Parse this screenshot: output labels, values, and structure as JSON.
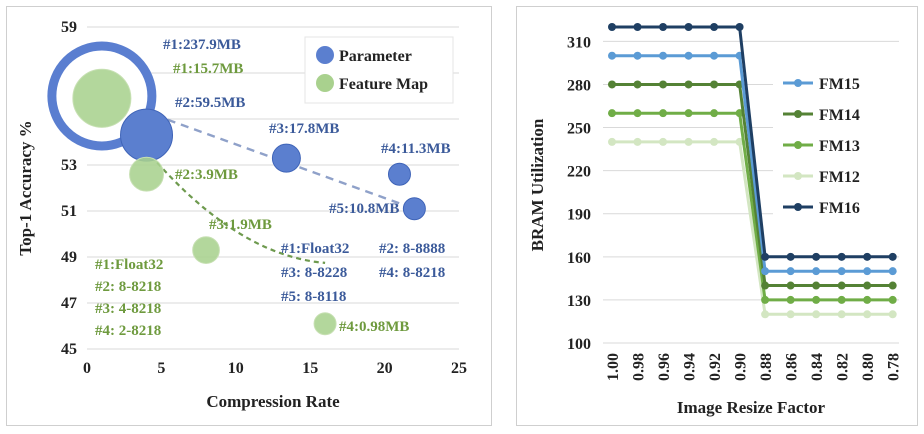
{
  "chart_data": [
    {
      "type": "scatter",
      "title": "",
      "xlabel": "Compression Rate",
      "ylabel": "Top-1 Accuracy %",
      "xlim": [
        0,
        25
      ],
      "ylim": [
        45,
        59
      ],
      "xticks": [
        "0",
        "5",
        "10",
        "15",
        "20",
        "25"
      ],
      "yticks": [
        "45",
        "47",
        "49",
        "51",
        "53",
        "55",
        "57",
        "59"
      ],
      "grid": "horizontal",
      "legend": [
        "Parameter",
        "Feature Map"
      ],
      "legend_position": "top-right",
      "series": [
        {
          "name": "Parameter",
          "color": "#4a6bbf",
          "trendline": "linear-dashed",
          "points": [
            {
              "x": 1,
              "y": 56.0,
              "label": "#1:237.9MB",
              "size_mb": 237.9
            },
            {
              "x": 4,
              "y": 54.3,
              "label": "#2:59.5MB",
              "size_mb": 59.5
            },
            {
              "x": 13.4,
              "y": 53.3,
              "label": "#3:17.8MB",
              "size_mb": 17.8
            },
            {
              "x": 21,
              "y": 52.6,
              "label": "#4:11.3MB",
              "size_mb": 11.3
            },
            {
              "x": 22,
              "y": 51.1,
              "label": "#5:10.8MB",
              "size_mb": 10.8
            }
          ]
        },
        {
          "name": "Feature Map",
          "color": "#9fcf7f",
          "trendline": "curve-dashed",
          "points": [
            {
              "x": 1,
              "y": 55.9,
              "label": "#1:15.7MB",
              "size_mb": 15.7
            },
            {
              "x": 4,
              "y": 52.6,
              "label": "#2:3.9MB",
              "size_mb": 3.9
            },
            {
              "x": 8,
              "y": 49.3,
              "label": "#3:1.9MB",
              "size_mb": 1.9
            },
            {
              "x": 16,
              "y": 46.1,
              "label": "#4:0.98MB",
              "size_mb": 0.98
            }
          ]
        }
      ],
      "annotations": {
        "parameter_key": [
          "#1:Float32",
          "#2: 8-8888",
          "#3: 8-8228",
          "#4: 8-8218",
          "#5: 8-8118"
        ],
        "feature_map_key": [
          "#1:Float32",
          "#2: 8-8218",
          "#3: 4-8218",
          "#4: 2-8218"
        ]
      }
    },
    {
      "type": "line",
      "title": "",
      "xlabel": "Image Resize Factor",
      "ylabel": "BRAM Utilization",
      "categories": [
        "1.00",
        "0.98",
        "0.96",
        "0.94",
        "0.92",
        "0.90",
        "0.88",
        "0.86",
        "0.84",
        "0.82",
        "0.80",
        "0.78"
      ],
      "ylim": [
        100,
        320
      ],
      "yticks": [
        "100",
        "130",
        "160",
        "190",
        "220",
        "250",
        "280",
        "310"
      ],
      "grid": "horizontal",
      "legend_position": "right",
      "series": [
        {
          "name": "FM15",
          "color": "#5b9bd5",
          "values": [
            300,
            300,
            300,
            300,
            300,
            300,
            150,
            150,
            150,
            150,
            150,
            150
          ]
        },
        {
          "name": "FM14",
          "color": "#548235",
          "values": [
            280,
            280,
            280,
            280,
            280,
            280,
            140,
            140,
            140,
            140,
            140,
            140
          ]
        },
        {
          "name": "FM13",
          "color": "#70ad47",
          "values": [
            260,
            260,
            260,
            260,
            260,
            260,
            130,
            130,
            130,
            130,
            130,
            130
          ]
        },
        {
          "name": "FM12",
          "color": "#d3e6c2",
          "values": [
            240,
            240,
            240,
            240,
            240,
            240,
            120,
            120,
            120,
            120,
            120,
            120
          ]
        },
        {
          "name": "FM16",
          "color": "#1f3f63",
          "values": [
            320,
            320,
            320,
            320,
            320,
            320,
            160,
            160,
            160,
            160,
            160,
            160
          ]
        }
      ]
    }
  ]
}
